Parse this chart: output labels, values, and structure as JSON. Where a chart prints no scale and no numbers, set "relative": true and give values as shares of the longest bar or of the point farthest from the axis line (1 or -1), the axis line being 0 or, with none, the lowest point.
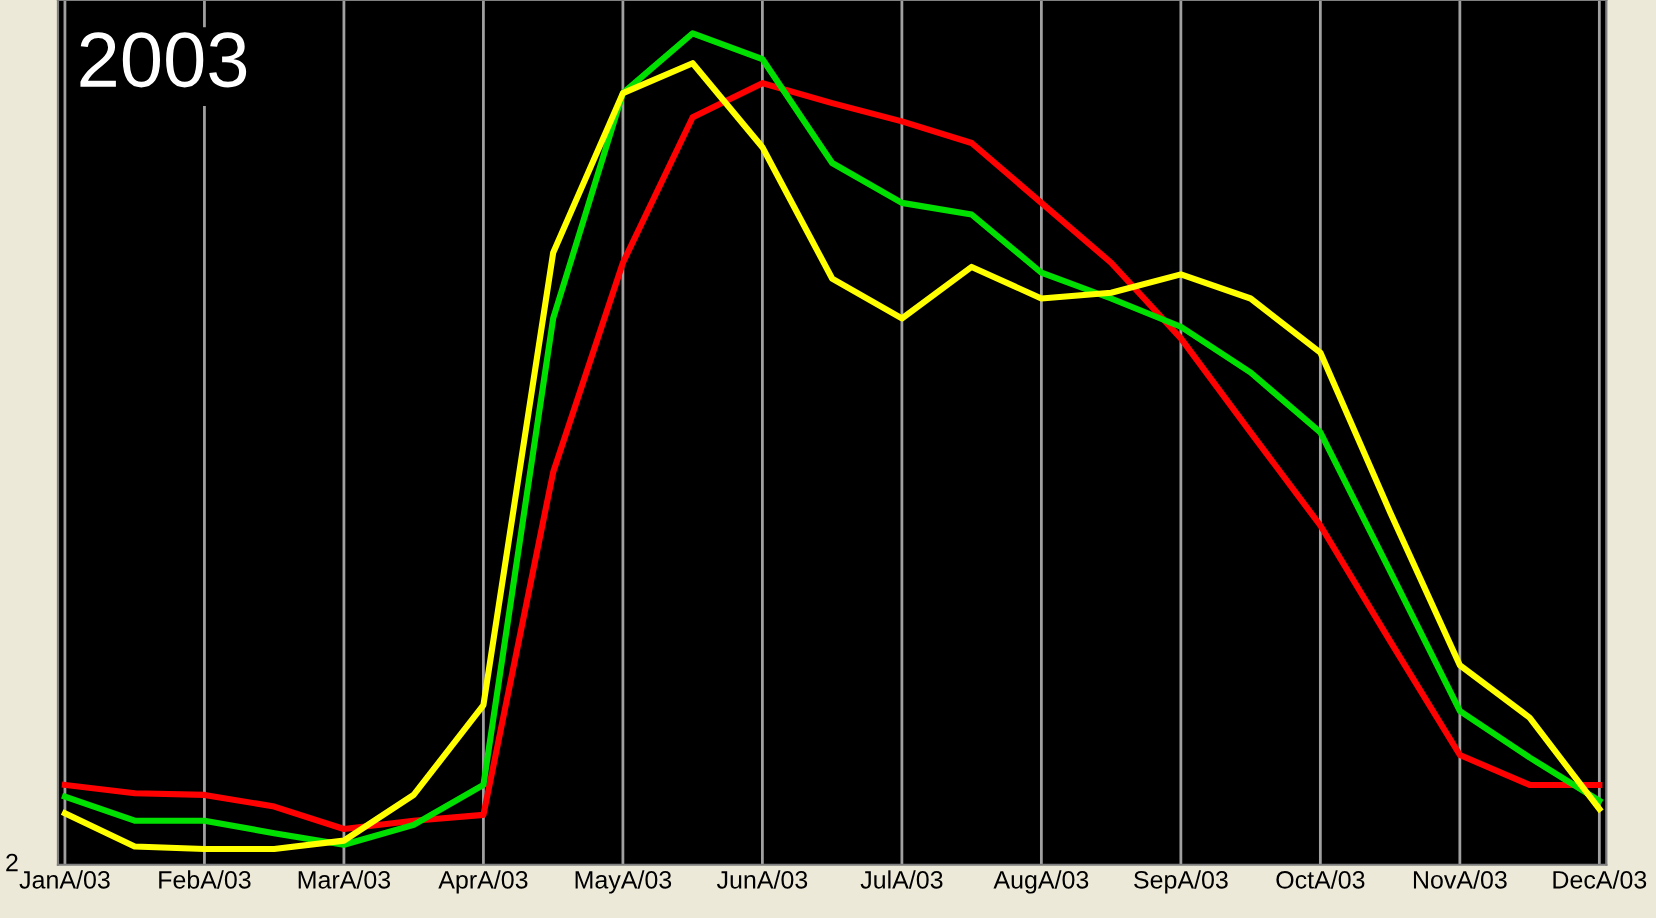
{
  "chart_data": {
    "type": "line",
    "title": "2003",
    "relative": true,
    "grid": "x",
    "legend": false,
    "categories": [
      "JanA/03",
      null,
      "FebA/03",
      null,
      "MarA/03",
      null,
      "AprA/03",
      null,
      "MayA/03",
      null,
      "JunA/03",
      null,
      "JulA/03",
      null,
      "AugA/03",
      null,
      "SepA/03",
      null,
      "OctA/03",
      null,
      "NovA/03",
      null,
      "DecA/03"
    ],
    "annotations": [
      "2"
    ],
    "series": [
      {
        "color": "#ff0000",
        "values": [
          0.096,
          0.086,
          0.084,
          0.07,
          0.043,
          0.053,
          0.06,
          0.472,
          0.724,
          0.899,
          0.94,
          0.916,
          0.894,
          0.868,
          0.796,
          0.724,
          0.633,
          0.52,
          0.408,
          0.269,
          0.132,
          0.096,
          0.096
        ]
      },
      {
        "color": "#00e000",
        "values": [
          0.082,
          0.053,
          0.053,
          0.038,
          0.024,
          0.048,
          0.096,
          0.657,
          0.928,
          1,
          0.969,
          0.844,
          0.796,
          0.782,
          0.712,
          0.681,
          0.647,
          0.592,
          0.52,
          0.353,
          0.185,
          0.129,
          0.077
        ]
      },
      {
        "color": "#ffff00",
        "values": [
          0.062,
          0.022,
          0.019,
          0.019,
          0.029,
          0.084,
          0.192,
          0.736,
          0.928,
          0.964,
          0.863,
          0.705,
          0.657,
          0.719,
          0.681,
          0.688,
          0.71,
          0.681,
          0.616,
          0.424,
          0.24,
          0.177,
          0.067
        ]
      }
    ]
  }
}
